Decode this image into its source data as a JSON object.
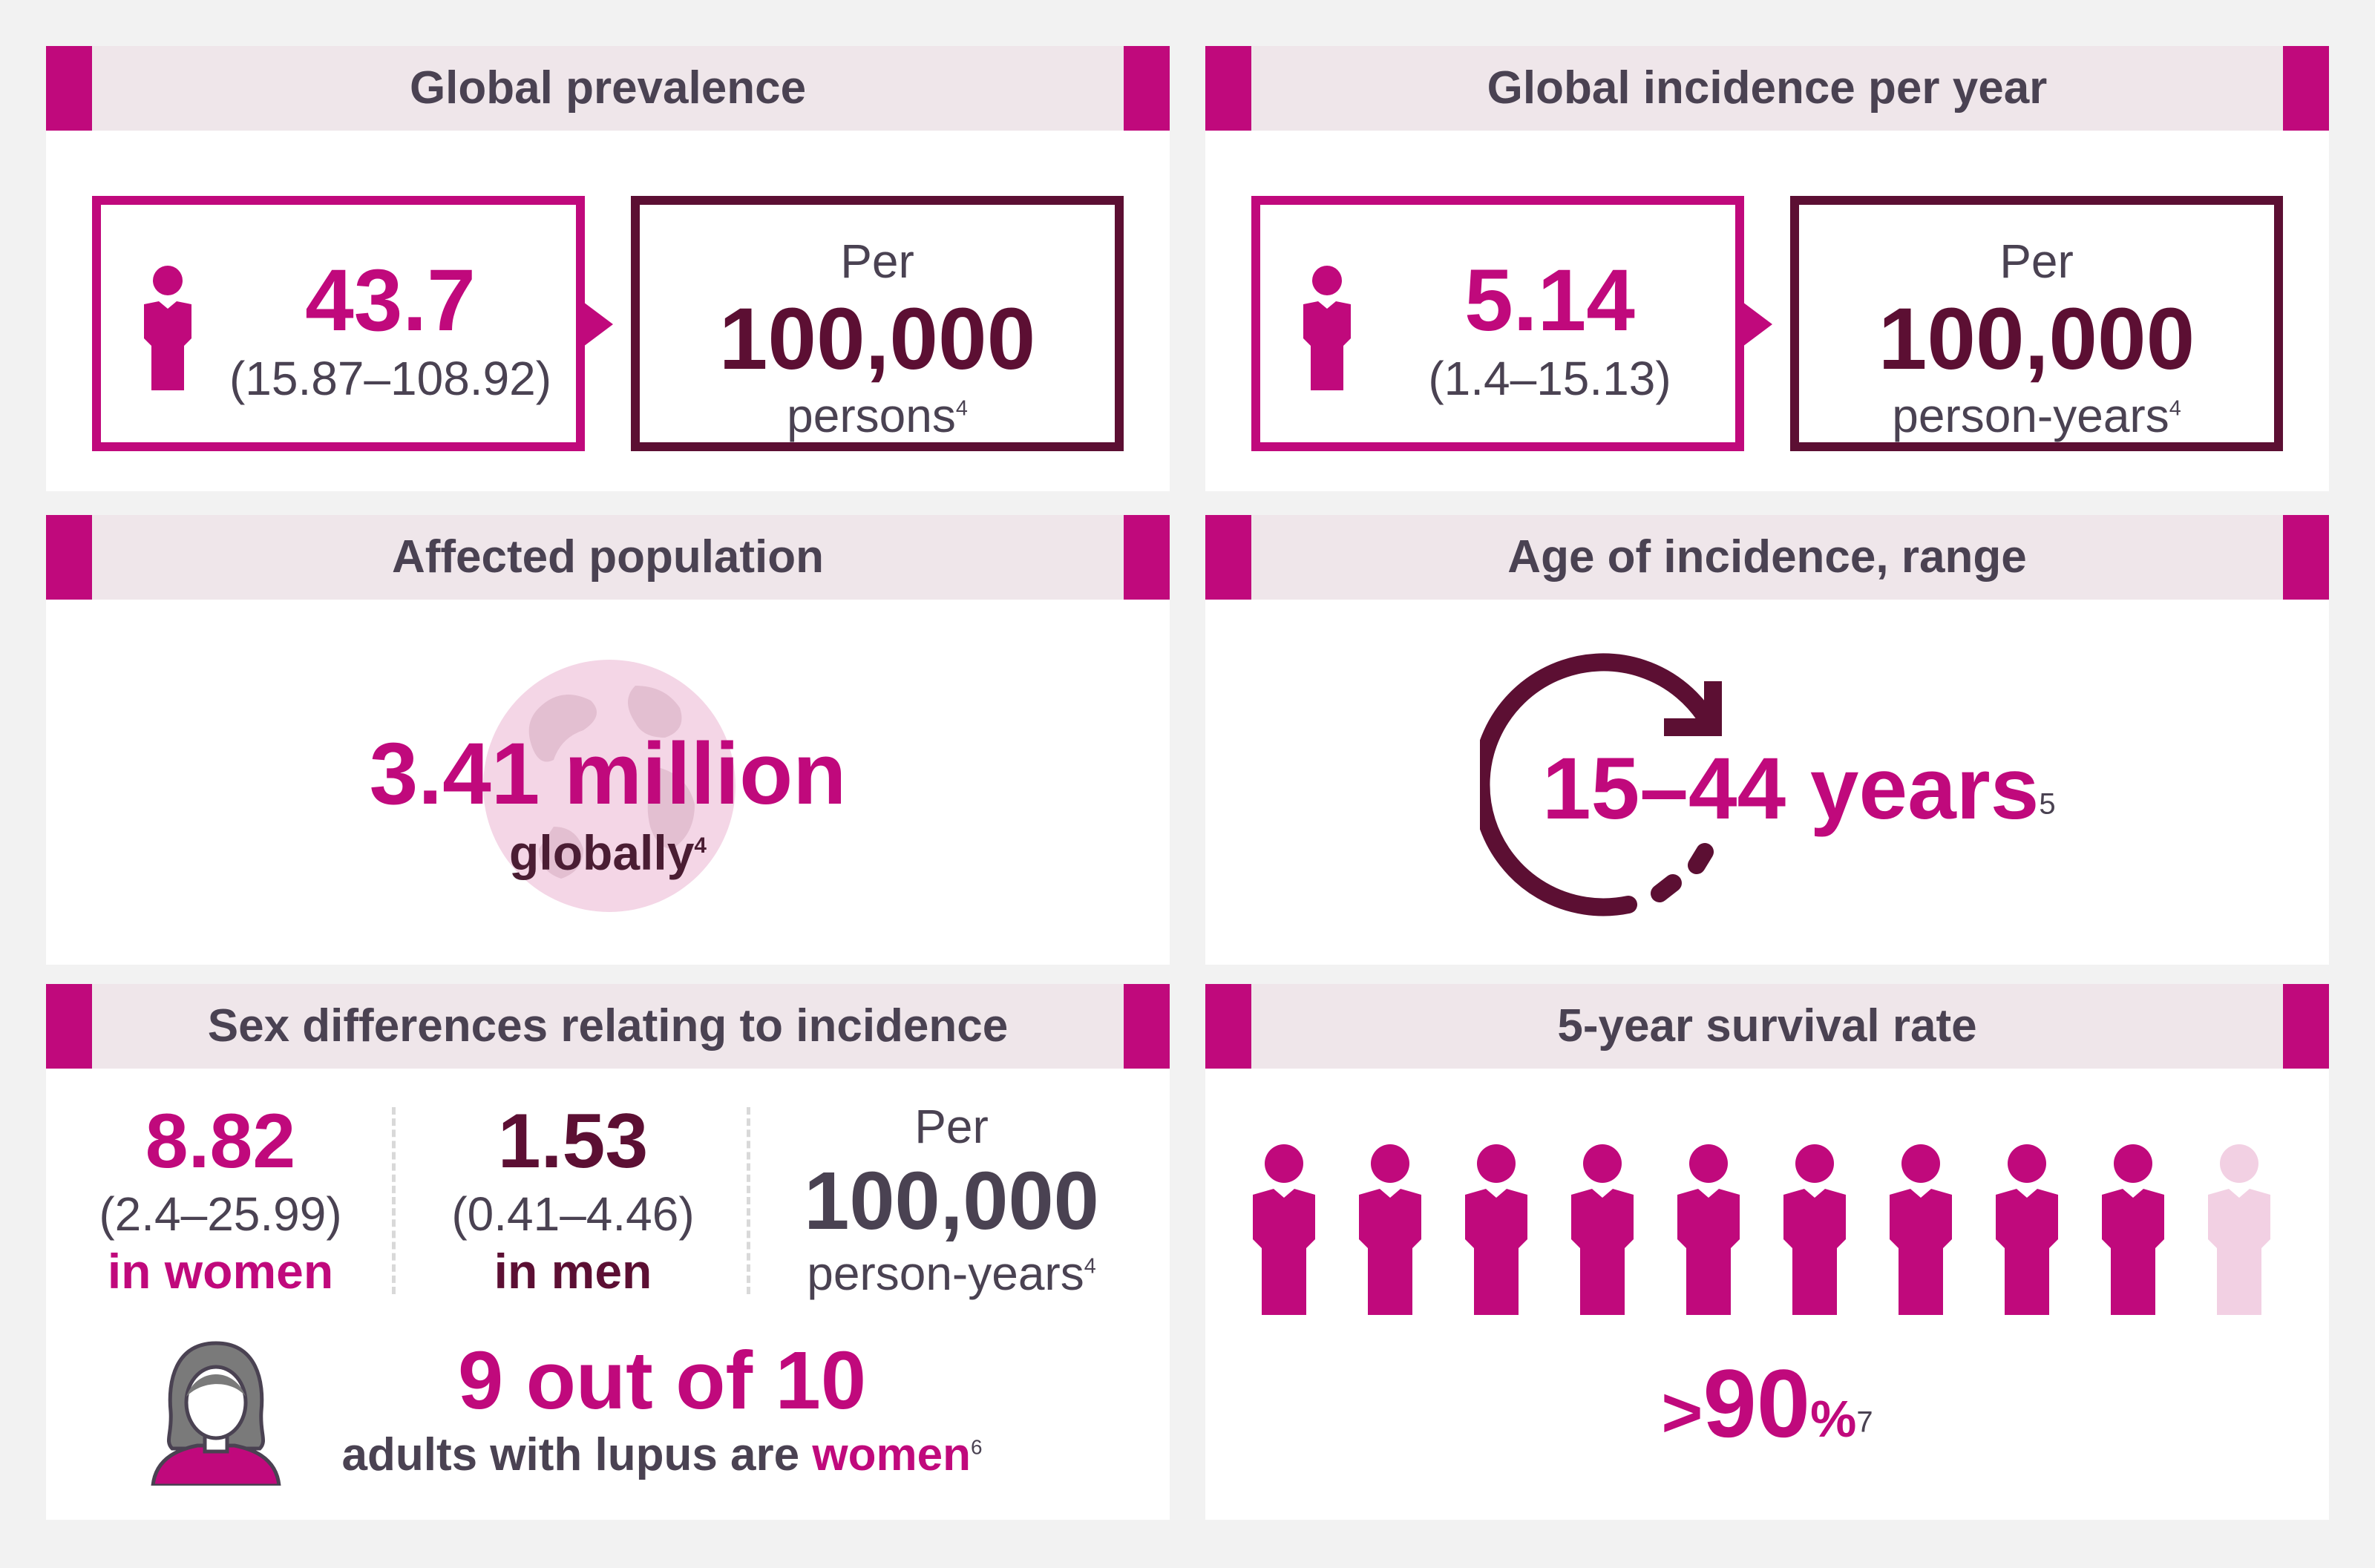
{
  "panels": {
    "prevalence": {
      "title": "Global prevalence",
      "value": "43.7",
      "range": "(15.87–108.92)",
      "per": "Per",
      "per_value": "100,000",
      "unit": "persons",
      "ref": "4"
    },
    "incidence": {
      "title": "Global incidence per year",
      "value": "5.14",
      "range": "(1.4–15.13)",
      "per": "Per",
      "per_value": "100,000",
      "unit": "person-years",
      "ref": "4"
    },
    "affected": {
      "title": "Affected population",
      "value": "3.41 million",
      "sub": "globally",
      "ref": "4"
    },
    "age": {
      "title": "Age of incidence, range",
      "value": "15–44 years",
      "ref": "5"
    },
    "sex": {
      "title": "Sex differences relating to incidence",
      "women_value": "8.82",
      "women_range": "(2.4–25.99)",
      "women_label": "in women",
      "men_value": "1.53",
      "men_range": "(0.41–4.46)",
      "men_label": "in men",
      "per": "Per",
      "per_value": "100,000",
      "unit": "person-years",
      "ref": "4",
      "ratio": "9 out of 10",
      "ratio_text": "adults with lupus are",
      "ratio_emph": "women",
      "ratio_ref": "6"
    },
    "survival": {
      "title": "5-year survival rate",
      "prefix": ">",
      "value": "90",
      "pct": "%",
      "ref": "7",
      "people_total": 10,
      "people_highlighted": 9
    }
  },
  "colors": {
    "magenta": "#c0097c",
    "plum": "#5c0f33",
    "light_pink": "#f2d0e3",
    "header_bg": "#efe6ea",
    "text_grey": "#4a4252"
  }
}
